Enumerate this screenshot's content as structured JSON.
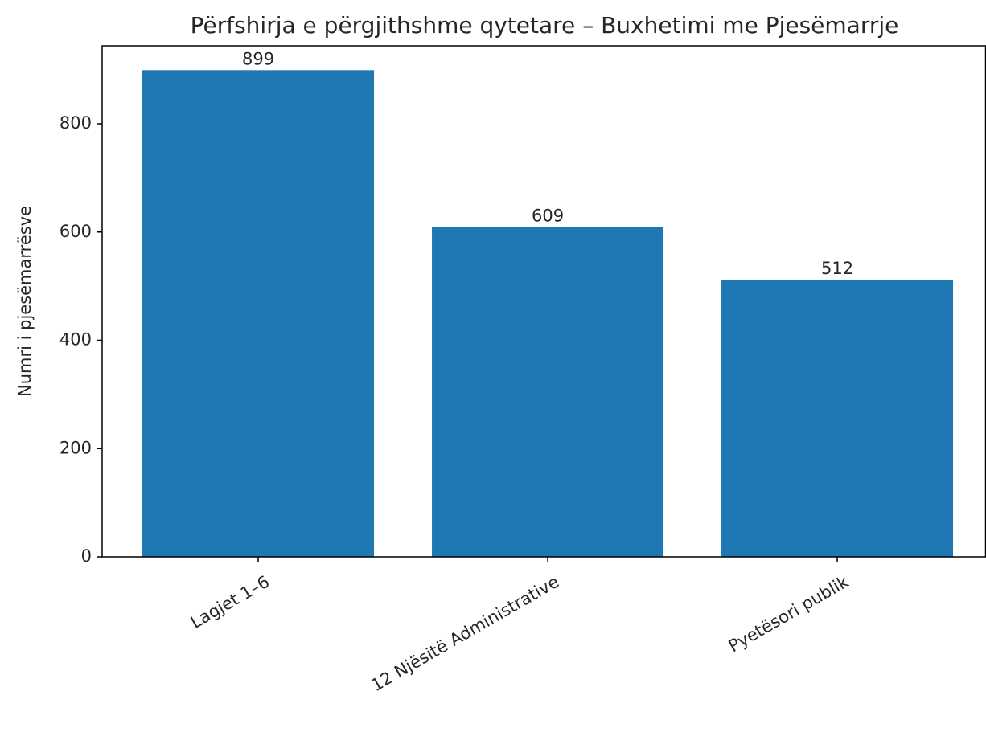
{
  "chart_data": {
    "type": "bar",
    "title": "Përfshirja e përgjithshme qytetare – Buxhetimi me Pjesëmarrje",
    "y_label": "Numri i pjesëmarrësve",
    "categories": [
      "Lagjet 1–6",
      "12 Njësitë Administrative",
      "Pyetësori publik"
    ],
    "values": [
      899,
      609,
      512
    ],
    "color": "#1f77b4",
    "ylim": [
      0,
      944
    ],
    "yticks": [
      0,
      200,
      400,
      600,
      800
    ],
    "grid": false
  }
}
